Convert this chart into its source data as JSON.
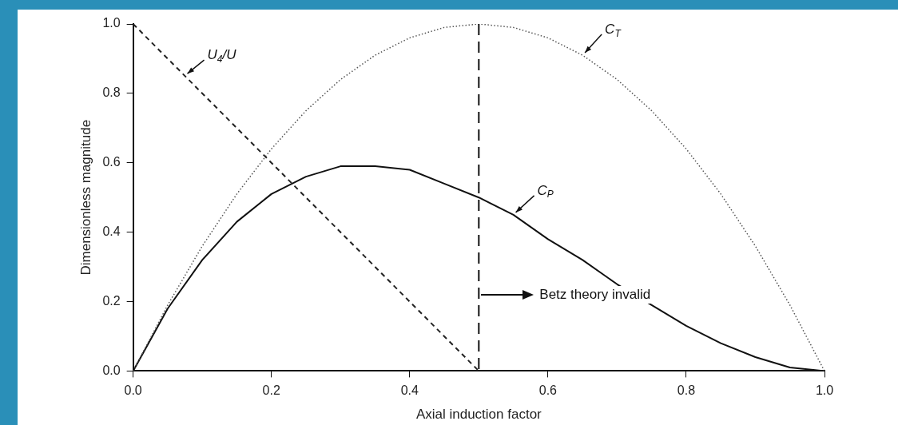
{
  "chart_data": {
    "type": "line",
    "xlabel": "Axial induction factor",
    "ylabel": "Dimensionless magnitude",
    "xlim": [
      0,
      1
    ],
    "ylim": [
      0,
      1
    ],
    "xticks": [
      {
        "value": 0,
        "label": "0.0"
      },
      {
        "value": 0.2,
        "label": "0.2"
      },
      {
        "value": 0.4,
        "label": "0.4"
      },
      {
        "value": 0.6,
        "label": "0.6"
      },
      {
        "value": 0.8,
        "label": "0.8"
      },
      {
        "value": 1,
        "label": "1.0"
      }
    ],
    "yticks": [
      {
        "value": 0,
        "label": "0.0"
      },
      {
        "value": 0.2,
        "label": "0.2"
      },
      {
        "value": 0.4,
        "label": "0.4"
      },
      {
        "value": 0.6,
        "label": "0.6"
      },
      {
        "value": 0.8,
        "label": "0.8"
      },
      {
        "value": 1,
        "label": "1.0"
      }
    ],
    "grid": false,
    "legend": false,
    "marker": "none",
    "series": [
      {
        "name": "U$_{4}$/U",
        "color": "#222222",
        "line_style": "dashed",
        "x": [
          0,
          0.5
        ],
        "values": [
          1,
          0
        ]
      },
      {
        "name": "C$_{T}$",
        "color": "#555555",
        "line_style": "dotted",
        "x": [
          0,
          0.05,
          0.1,
          0.15,
          0.2,
          0.25,
          0.3,
          0.35,
          0.4,
          0.45,
          0.5,
          0.55,
          0.6,
          0.65,
          0.7,
          0.75,
          0.8,
          0.85,
          0.9,
          0.95,
          1
        ],
        "values": [
          0,
          0.19,
          0.36,
          0.51,
          0.64,
          0.75,
          0.84,
          0.91,
          0.96,
          0.99,
          1,
          0.99,
          0.96,
          0.91,
          0.84,
          0.75,
          0.64,
          0.51,
          0.36,
          0.19,
          0
        ]
      },
      {
        "name": "C$_{P}$",
        "color": "#111111",
        "line_style": "solid",
        "x": [
          0,
          0.05,
          0.1,
          0.15,
          0.2,
          0.25,
          0.3,
          0.35,
          0.4,
          0.45,
          0.5,
          0.55,
          0.6,
          0.65,
          0.7,
          0.75,
          0.8,
          0.85,
          0.9,
          0.95,
          1
        ],
        "values": [
          0,
          0.18,
          0.32,
          0.43,
          0.51,
          0.56,
          0.59,
          0.59,
          0.58,
          0.54,
          0.5,
          0.45,
          0.38,
          0.32,
          0.25,
          0.19,
          0.13,
          0.08,
          0.04,
          0.01,
          0
        ]
      }
    ],
    "ref_lines": [
      {
        "axis": "x",
        "value": 0.5,
        "line_style": "dashed",
        "color": "#111111"
      }
    ],
    "annotations": [
      "Betz theory invalid"
    ]
  }
}
